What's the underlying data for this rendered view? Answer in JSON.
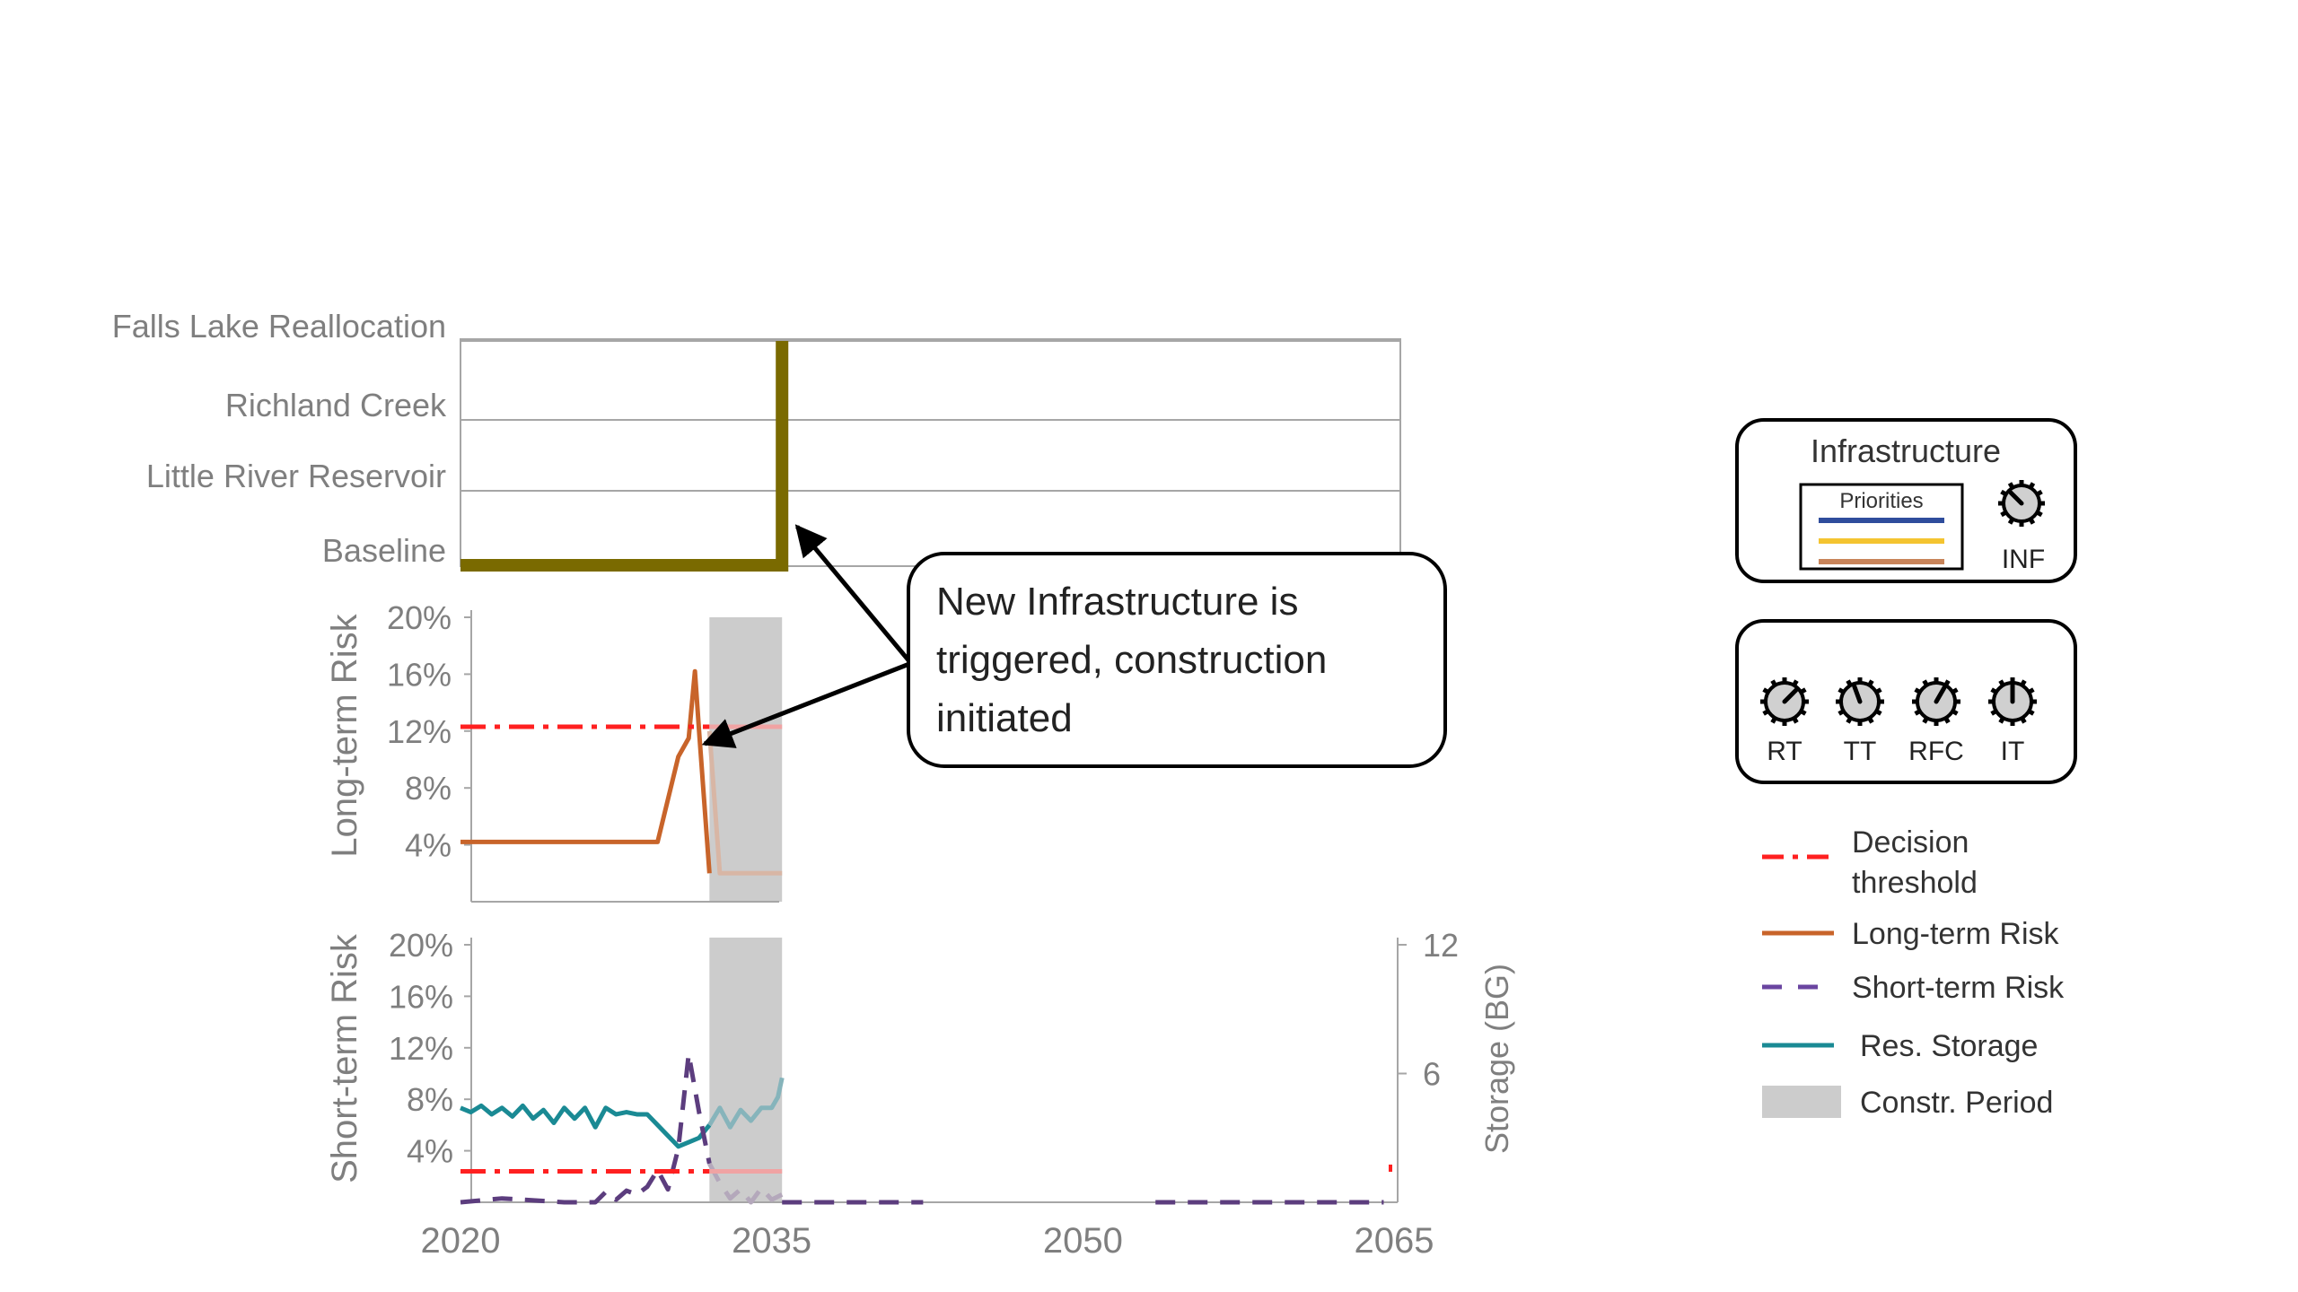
{
  "chart_data": [
    {
      "type": "step",
      "panel": "infrastructure",
      "categories": [
        "Baseline",
        "Little River Reservoir",
        "Richland Creek",
        "Falls Lake Reallocation"
      ],
      "series": [
        {
          "points": [
            [
              2020,
              0
            ],
            [
              2035.5,
              0
            ],
            [
              2035.5,
              3
            ]
          ]
        }
      ],
      "xlim": [
        2020,
        2065
      ],
      "color": "#7a6a00"
    },
    {
      "type": "line",
      "panel": "long-term",
      "ylabel": "Long-term Risk",
      "yticks": [
        "20%",
        "16%",
        "12%",
        "8%",
        "4%"
      ],
      "ytick_values": [
        20,
        16,
        12,
        8,
        4
      ],
      "ylim": [
        0,
        20
      ],
      "xlim": [
        2020,
        2065
      ],
      "series": [
        {
          "name": "Long-term Risk",
          "color": "#c8642a",
          "x": [
            2020,
            2029.5,
            2030.5,
            2031,
            2031.3,
            2031.5,
            2032
          ],
          "y": [
            4.2,
            4.2,
            10.2,
            11.5,
            16.2,
            12,
            2
          ]
        },
        {
          "name": "Long-term Risk",
          "faded": true,
          "color": "#d8b6a5",
          "x": [
            2032,
            2032.5,
            2033,
            2035.5
          ],
          "y": [
            12,
            2,
            2,
            2
          ]
        },
        {
          "name": "Decision threshold",
          "color": "#ff2020",
          "dash": "dashdot",
          "x": [
            2020,
            2032
          ],
          "y": [
            12.3,
            12.3
          ]
        },
        {
          "name": "Decision threshold",
          "faded": true,
          "color": "#f0a3a3",
          "x": [
            2032,
            2035.5
          ],
          "y": [
            12.3,
            12.3
          ]
        }
      ],
      "shaded": [
        2032,
        2035.5
      ]
    },
    {
      "type": "line",
      "panel": "short-term",
      "ylabel": "Short-term Risk",
      "ylabel_right": "Storage (BG)",
      "yticks": [
        "20%",
        "16%",
        "12%",
        "8%",
        "4%"
      ],
      "ytick_values": [
        20,
        16,
        12,
        8,
        4
      ],
      "yticks_right": [
        "12",
        "6"
      ],
      "ytick_right_values": [
        12,
        6
      ],
      "ylim": [
        0,
        20
      ],
      "ylim_right": [
        0,
        12
      ],
      "xlim": [
        2020,
        2065
      ],
      "xticks": [
        "2020",
        "2035",
        "2050",
        "2065"
      ],
      "xtick_values": [
        2020,
        2035,
        2050,
        2065
      ],
      "series": [
        {
          "name": "Res. Storage",
          "axis": "right",
          "color": "#1a8a94",
          "x": [
            2020,
            2020.5,
            2021,
            2021.5,
            2022,
            2022.5,
            2023,
            2023.5,
            2024,
            2024.5,
            2025,
            2025.5,
            2026,
            2026.5,
            2027,
            2027.5,
            2028,
            2028.5,
            2029,
            2029.5,
            2030,
            2030.5,
            2031,
            2031.5,
            2032
          ],
          "y": [
            4.4,
            4.2,
            4.5,
            4.1,
            4.4,
            4.0,
            4.5,
            3.9,
            4.3,
            3.7,
            4.4,
            3.9,
            4.4,
            3.5,
            4.4,
            4.1,
            4.2,
            4.1,
            4.1,
            3.6,
            3.1,
            2.6,
            2.8,
            3.0,
            3.6
          ]
        },
        {
          "name": "Res. Storage",
          "axis": "right",
          "faded": true,
          "color": "#86b4bb",
          "x": [
            2032,
            2032.5,
            2033,
            2033.5,
            2034,
            2034.5,
            2035,
            2035.3,
            2035.5
          ],
          "y": [
            3.6,
            4.4,
            3.5,
            4.3,
            3.8,
            4.4,
            4.4,
            4.9,
            5.8
          ]
        },
        {
          "name": "Short-term Risk",
          "color": "#5c3d7e",
          "dash": "dashed",
          "x": [
            2020,
            2022,
            2025,
            2026.5,
            2027,
            2027.5,
            2028,
            2028.5,
            2029,
            2029.5,
            2030,
            2030.5,
            2031,
            2031.5,
            2032
          ],
          "y": [
            0,
            0.3,
            0,
            0,
            0.8,
            0.2,
            0.9,
            0.6,
            1.2,
            2.5,
            1.0,
            4.2,
            11.5,
            7.0,
            3.0
          ]
        },
        {
          "name": "Short-term Risk",
          "faded": true,
          "color": "#b4a8bb",
          "dash": "dashed",
          "x": [
            2032,
            2032.5,
            2033,
            2033.5,
            2034,
            2034.5,
            2035,
            2035.5
          ],
          "y": [
            3.0,
            1.5,
            0.3,
            1.0,
            0,
            1.1,
            0.2,
            0.6
          ]
        },
        {
          "name": "Short-term Risk",
          "color": "#5c3d7e",
          "dash": "dashed",
          "x": [
            2035.5,
            2042.3
          ],
          "y": [
            0,
            0
          ]
        },
        {
          "name": "Short-term Risk",
          "color": "#5c3d7e",
          "dash": "dashed",
          "x": [
            2053.5,
            2064.5
          ],
          "y": [
            0,
            0
          ]
        },
        {
          "name": "Decision threshold",
          "color": "#ff2020",
          "dash": "dashdot",
          "x": [
            2020,
            2032
          ],
          "y": [
            2.4,
            2.4
          ]
        },
        {
          "name": "Decision threshold",
          "faded": true,
          "color": "#f0a3a3",
          "x": [
            2032,
            2035.5
          ],
          "y": [
            2.4,
            2.4
          ]
        }
      ],
      "shaded": [
        2032,
        2035.5
      ]
    }
  ],
  "annotation": {
    "lines": [
      "New Infrastructure is",
      "triggered, construction",
      "initiated"
    ]
  },
  "infrastructure_box": {
    "title": "Infrastructure",
    "priorities_label": "Priorities",
    "priority_colors": [
      "#2f4d9c",
      "#f4c430",
      "#c8845a"
    ],
    "dial_label": "INF"
  },
  "dials": [
    "RT",
    "TT",
    "RFC",
    "IT"
  ],
  "legend": [
    {
      "label": "Decision threshold",
      "label_lines": [
        "Decision",
        "threshold"
      ],
      "style": "dashdot",
      "color": "#ff2020"
    },
    {
      "label": "Long-term Risk",
      "style": "solid",
      "color": "#c8642a"
    },
    {
      "label": "Short-term Risk",
      "style": "dashed",
      "color": "#6a45a0"
    },
    {
      "label": "Res. Storage",
      "style": "solid",
      "color": "#1a8a94"
    },
    {
      "label": "Constr. Period",
      "style": "block",
      "color": "#cccccc"
    }
  ]
}
